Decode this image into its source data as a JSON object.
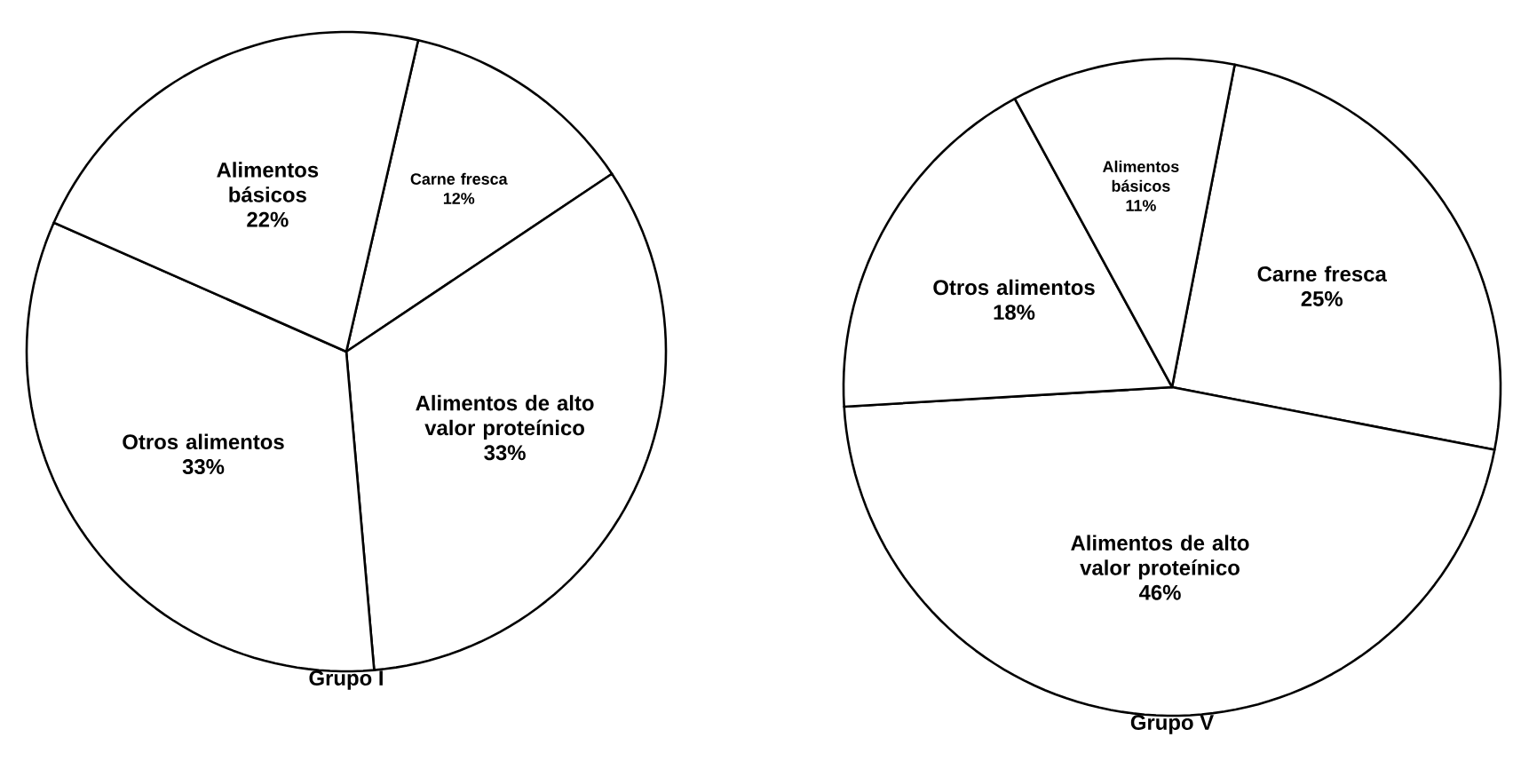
{
  "chart_data": [
    {
      "type": "pie",
      "title": "Grupo I",
      "categories": [
        "Carne fresca",
        "Alimentos de alto valor proteínico",
        "Otros alimentos",
        "Alimentos básicos"
      ],
      "values": [
        12,
        33,
        33,
        22
      ],
      "value_labels": [
        "12%",
        "33%",
        "33%",
        "22%"
      ],
      "colors": [
        "#ffffff",
        "#ffffff",
        "#ffffff",
        "#ffffff"
      ]
    },
    {
      "type": "pie",
      "title": "Grupo V",
      "categories": [
        "Carne fresca",
        "Alimentos de alto valor proteínico",
        "Otros alimentos",
        "Alimentos básicos"
      ],
      "values": [
        25,
        46,
        18,
        11
      ],
      "value_labels": [
        "25%",
        "46%",
        "18%",
        "11%"
      ],
      "colors": [
        "#ffffff",
        "#ffffff",
        "#ffffff",
        "#ffffff"
      ]
    }
  ]
}
